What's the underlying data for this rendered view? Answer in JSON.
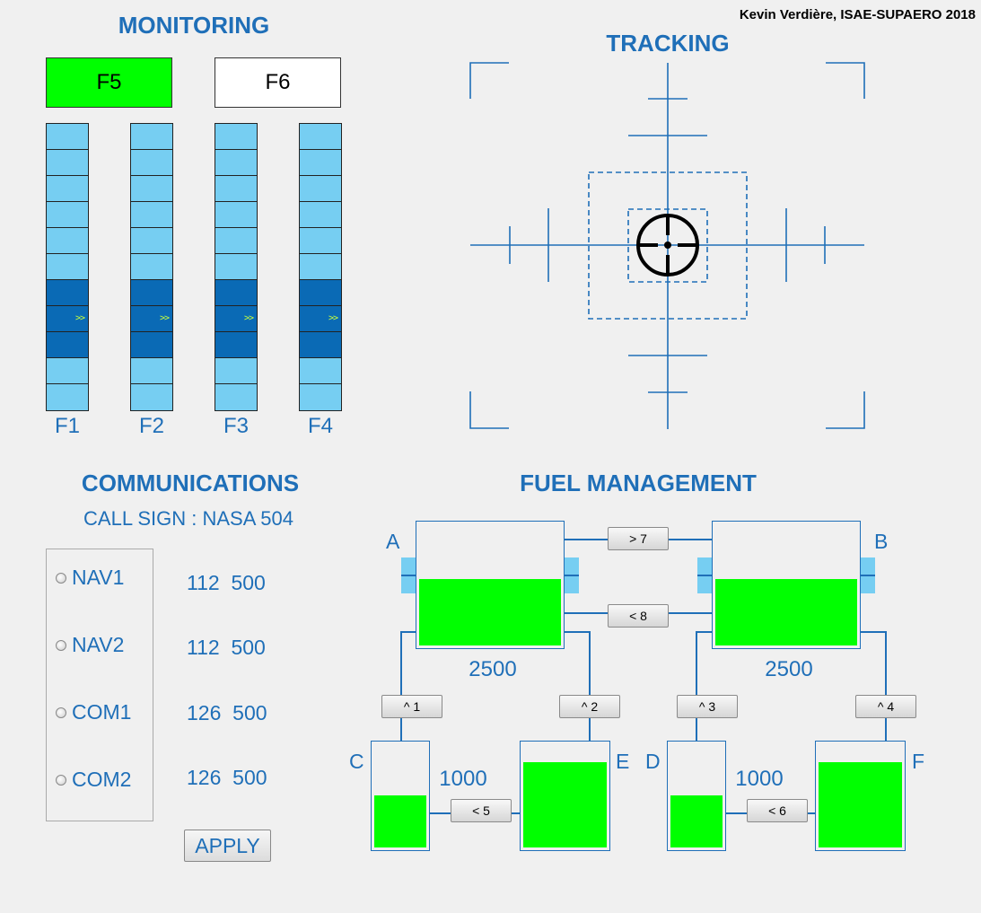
{
  "credit": "Kevin Verdière, ISAE-SUPAERO 2018",
  "monitoring": {
    "title": "MONITORING",
    "buttons": [
      {
        "label": "F5",
        "active": true
      },
      {
        "label": "F6",
        "active": false
      }
    ],
    "gauges": [
      {
        "label": "F1",
        "arrows": ">>"
      },
      {
        "label": "F2",
        "arrows": ">>"
      },
      {
        "label": "F3",
        "arrows": ">>"
      },
      {
        "label": "F4",
        "arrows": ">>"
      }
    ]
  },
  "tracking": {
    "title": "TRACKING"
  },
  "communications": {
    "title": "COMMUNICATIONS",
    "callsign": "CALL SIGN : NASA 504",
    "radios": [
      {
        "label": "NAV1",
        "freq": "112  500"
      },
      {
        "label": "NAV2",
        "freq": "112  500"
      },
      {
        "label": "COM1",
        "freq": "126  500"
      },
      {
        "label": "COM2",
        "freq": "126  500"
      }
    ],
    "apply_label": "APPLY"
  },
  "fuel": {
    "title": "FUEL MANAGEMENT",
    "tanks": {
      "A": {
        "label": "A",
        "value": "2500",
        "level": 0.55
      },
      "B": {
        "label": "B",
        "value": "2500",
        "level": 0.55
      },
      "C": {
        "label": "C",
        "value": "1000",
        "level": 0.5
      },
      "D": {
        "label": "D",
        "value": "1000",
        "level": 0.5
      },
      "E": {
        "label": "E",
        "level": 0.83
      },
      "F": {
        "label": "F",
        "level": 0.83
      }
    },
    "pumps": {
      "p1": "^ 1",
      "p2": "^ 2",
      "p3": "^ 3",
      "p4": "^ 4",
      "p5": "< 5",
      "p6": "< 6",
      "p7": "> 7",
      "p8": "< 8"
    }
  },
  "colors": {
    "accent": "#1f6fb8",
    "fuel": "#00ff00",
    "gauge_light": "#76cef2",
    "gauge_dark": "#0a6ab5",
    "active_button": "#00ff00"
  }
}
